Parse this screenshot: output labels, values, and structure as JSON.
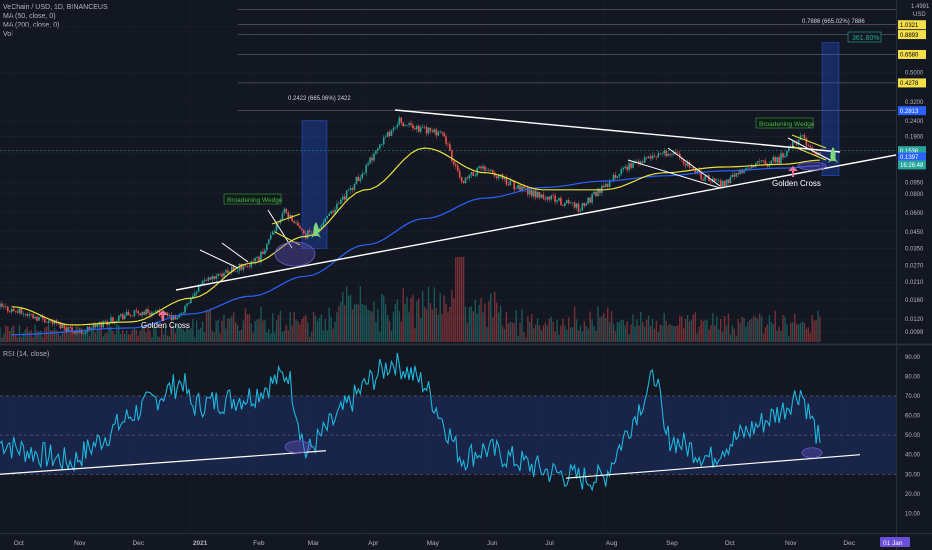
{
  "header": {
    "symbol": "VeChain / USD, 1D, BINANCEUS",
    "ma50": "MA (50, close, 0)",
    "ma200": "MA (200, close, 0)",
    "vol": "Vol",
    "rsi": "RSI (14, close)",
    "currency": "USD",
    "top_price_partial": "1.4991"
  },
  "colors": {
    "background": "#131722",
    "up": "#26a69a",
    "down": "#ef5350",
    "ma50": "#e8e33a",
    "ma200": "#2962ff",
    "rsi": "#1fb6dc",
    "rsi_band": "#1b2a55",
    "projection": "#1e4a7a",
    "arrow": "#ef6f9b",
    "rocket": "#7fd67f",
    "pattern_label": "#4caf50"
  },
  "annotations": {
    "fib_left": "0.2422 (665.06%) 2422",
    "fib_right": "0.7886 (665.02%) 7886",
    "fib_ext": "361.80%",
    "wedge1": "Broadening Wedge",
    "wedge2": "Broadening Wedge",
    "gc1": "Golden Cross",
    "gc2": "Golden Cross"
  },
  "price_axis": {
    "ticks": [
      "1.0000",
      "0.5000",
      "0.3200",
      "0.2400",
      "0.1900",
      "0.1500",
      "0.0950",
      "0.0800",
      "0.0600",
      "0.0450",
      "0.0350",
      "0.0270",
      "0.0210",
      "0.0160",
      "0.0120",
      "0.0099"
    ],
    "boxes": [
      {
        "label": "1.0321",
        "color": "#f5e04a",
        "text_color": "#000000"
      },
      {
        "label": "0.8893",
        "color": "#f5e04a",
        "text_color": "#000000"
      },
      {
        "label": "0.6580",
        "color": "#f5e04a",
        "text_color": "#000000"
      },
      {
        "label": "0.4278",
        "color": "#f5e04a",
        "text_color": "#000000"
      },
      {
        "label": "0.2813",
        "color": "#2962ff",
        "text_color": "#ffffff"
      },
      {
        "label": "0.1536",
        "color": "#26a69a",
        "text_color": "#ffffff"
      },
      {
        "label": "0.1397",
        "color": "#2962ff",
        "text_color": "#ffffff"
      },
      {
        "label": "16:26:48",
        "color": "#26a69a",
        "text_color": "#ffffff"
      }
    ]
  },
  "rsi_axis": {
    "ticks": [
      "90.00",
      "80.00",
      "70.00",
      "60.00",
      "50.00",
      "40.00",
      "30.00",
      "20.00",
      "10.00"
    ]
  },
  "time_axis": {
    "labels": [
      "Oct",
      "Nov",
      "Dec",
      "2021",
      "Feb",
      "Mar",
      "Apr",
      "May",
      "Jun",
      "Jul",
      "Aug",
      "Sep",
      "Oct",
      "Nov",
      "Dec"
    ],
    "end_label": "01 Jan"
  },
  "chart_data": {
    "type": "line",
    "title": "VeChain / USD, 1D, BINANCEUS",
    "price_scale": "log",
    "ylim": [
      0.0085,
      1.5
    ],
    "series": [
      {
        "name": "MA (50, close, 0)",
        "x": [
          "2020-10-01",
          "2020-11-01",
          "2020-12-01",
          "2021-01-01",
          "2021-02-01",
          "2021-03-01",
          "2021-04-01",
          "2021-05-01",
          "2021-06-01",
          "2021-07-01",
          "2021-08-01",
          "2021-09-01",
          "2021-10-01",
          "2021-11-01",
          "2021-11-20"
        ],
        "values": [
          0.0145,
          0.011,
          0.0115,
          0.0165,
          0.028,
          0.042,
          0.085,
          0.16,
          0.11,
          0.085,
          0.085,
          0.11,
          0.12,
          0.125,
          0.133
        ]
      },
      {
        "name": "MA (200, close, 0)",
        "x": [
          "2020-10-01",
          "2020-12-01",
          "2021-01-01",
          "2021-02-01",
          "2021-03-01",
          "2021-04-01",
          "2021-05-01",
          "2021-06-01",
          "2021-07-01",
          "2021-08-01",
          "2021-09-01",
          "2021-10-01",
          "2021-11-01",
          "2021-11-20"
        ],
        "values": [
          0.0095,
          0.0105,
          0.013,
          0.017,
          0.023,
          0.037,
          0.055,
          0.075,
          0.088,
          0.097,
          0.105,
          0.113,
          0.118,
          0.122
        ]
      },
      {
        "name": "RSI (14, close)",
        "x": [
          "2020-10-01",
          "2020-11-01",
          "2020-12-01",
          "2021-01-01",
          "2021-02-01",
          "2021-03-01",
          "2021-04-01",
          "2021-05-01",
          "2021-06-01",
          "2021-07-01",
          "2021-08-01",
          "2021-09-01",
          "2021-10-01",
          "2021-11-01",
          "2021-11-20"
        ],
        "values": [
          44,
          36,
          60,
          65,
          70,
          40,
          76,
          76,
          43,
          32,
          28,
          50,
          44,
          63,
          46
        ]
      }
    ],
    "rsi_band": [
      30,
      70
    ],
    "rsi_ylim": [
      0,
      95
    ],
    "xlabel": "",
    "ylabel": ""
  }
}
